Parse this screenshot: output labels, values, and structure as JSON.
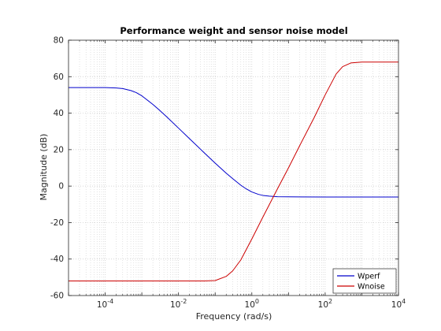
{
  "chart_data": {
    "type": "line",
    "title": "Performance weight and sensor noise model",
    "xlabel": "Frequency  (rad/s)",
    "ylabel": "Magnitude (dB)",
    "xscale": "log",
    "xlim": [
      1e-05,
      10000
    ],
    "ylim": [
      -60,
      80
    ],
    "xticks": [
      {
        "value": 0.0001,
        "base": "10",
        "exp": "-4"
      },
      {
        "value": 0.01,
        "base": "10",
        "exp": "-2"
      },
      {
        "value": 1,
        "base": "10",
        "exp": "0"
      },
      {
        "value": 100,
        "base": "10",
        "exp": "2"
      },
      {
        "value": 10000,
        "base": "10",
        "exp": "4"
      }
    ],
    "yticks": [
      "-60",
      "-40",
      "-20",
      "0",
      "20",
      "40",
      "60",
      "80"
    ],
    "grid": true,
    "legend_position": "bottom-right",
    "series": [
      {
        "name": "Wperf",
        "color": "#0000cc",
        "x": [
          1e-05,
          0.0001,
          0.0002,
          0.0003,
          0.0005,
          0.0007,
          0.001,
          0.002,
          0.003,
          0.005,
          0.01,
          0.02,
          0.05,
          0.1,
          0.2,
          0.3,
          0.5,
          0.7,
          1,
          1.5,
          2,
          3,
          5,
          10,
          100,
          10000
        ],
        "y": [
          54,
          54,
          53.8,
          53.5,
          52.4,
          51.3,
          49.5,
          44.8,
          41.7,
          37.6,
          31.8,
          26,
          18.3,
          12.6,
          7.1,
          4.1,
          0.5,
          -1.5,
          -3.2,
          -4.5,
          -5.1,
          -5.5,
          -5.8,
          -5.9,
          -6,
          -6
        ]
      },
      {
        "name": "Wnoise",
        "color": "#cc0000",
        "x": [
          1e-05,
          0.001,
          0.01,
          0.05,
          0.1,
          0.2,
          0.3,
          0.5,
          1,
          2,
          5,
          10,
          20,
          50,
          100,
          200,
          300,
          500,
          1000,
          10000
        ],
        "y": [
          -52,
          -52,
          -52,
          -52,
          -51.8,
          -49.5,
          -46.5,
          -40.5,
          -29,
          -17,
          -1.5,
          10,
          22,
          37.5,
          50,
          61.5,
          65.5,
          67.5,
          68,
          68
        ]
      }
    ]
  }
}
